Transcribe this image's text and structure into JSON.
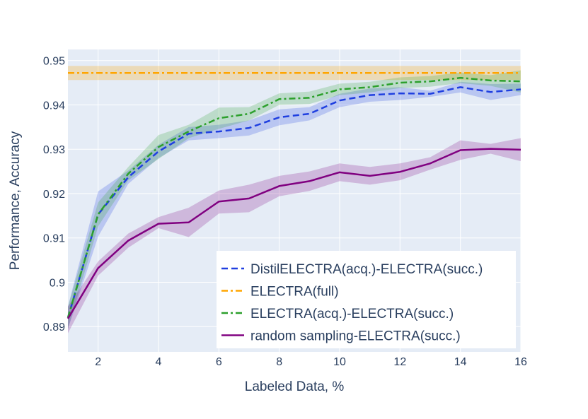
{
  "chart_data": {
    "type": "line",
    "title": "",
    "xlabel": "Labeled Data, %",
    "ylabel": "Performance, Accuracy",
    "xlim": [
      1,
      16
    ],
    "ylim": [
      0.8843,
      0.9525
    ],
    "xticks": [
      2,
      4,
      6,
      8,
      10,
      12,
      14,
      16
    ],
    "yticks": [
      0.89,
      0.9,
      0.91,
      0.92,
      0.93,
      0.94,
      0.95
    ],
    "ytick_labels": [
      "0.89",
      "0.9",
      "0.91",
      "0.92",
      "0.93",
      "0.94",
      "0.95"
    ],
    "legend_position": "bottom-right",
    "series": [
      {
        "name": "DistilELECTRA(acq.)-ELECTRA(succ.)",
        "color": "#1f3fe0",
        "dash": "dash",
        "x": [
          1,
          1.15,
          2,
          3,
          4,
          5,
          6,
          7,
          8,
          9,
          10,
          11,
          12,
          13,
          14,
          15,
          16
        ],
        "values": [
          0.892,
          0.8955,
          0.9153,
          0.9237,
          0.9295,
          0.9335,
          0.934,
          0.9348,
          0.9372,
          0.938,
          0.941,
          0.9422,
          0.9426,
          0.9425,
          0.944,
          0.9429,
          0.9435
        ],
        "upper": [
          0.8945,
          0.8985,
          0.9205,
          0.9252,
          0.931,
          0.935,
          0.9355,
          0.9365,
          0.939,
          0.9395,
          0.9425,
          0.9437,
          0.944,
          0.9432,
          0.9452,
          0.9447,
          0.9448
        ],
        "lower": [
          0.8895,
          0.8925,
          0.9103,
          0.9222,
          0.928,
          0.932,
          0.9325,
          0.9331,
          0.9354,
          0.9365,
          0.9395,
          0.9407,
          0.9411,
          0.9418,
          0.9428,
          0.9411,
          0.9422
        ]
      },
      {
        "name": "ELECTRA(full)",
        "color": "#ffa500",
        "dash": "dashdot",
        "x": [
          1,
          16
        ],
        "values": [
          0.9472,
          0.9472
        ],
        "upper": [
          0.9488,
          0.9488
        ],
        "lower": [
          0.9456,
          0.9456
        ]
      },
      {
        "name": "ELECTRA(acq.)-ELECTRA(succ.)",
        "color": "#2ca02c",
        "dash": "dashdot",
        "x": [
          1,
          1.15,
          2,
          3,
          4,
          5,
          6,
          7,
          8,
          9,
          10,
          11,
          12,
          13,
          14,
          15,
          16
        ],
        "values": [
          0.892,
          0.8955,
          0.9153,
          0.9245,
          0.9305,
          0.934,
          0.937,
          0.938,
          0.9413,
          0.9416,
          0.9435,
          0.944,
          0.945,
          0.9453,
          0.9461,
          0.9455,
          0.9453
        ],
        "upper": [
          0.8945,
          0.898,
          0.918,
          0.926,
          0.9332,
          0.9355,
          0.9394,
          0.9395,
          0.9426,
          0.943,
          0.9448,
          0.9452,
          0.9462,
          0.9465,
          0.9473,
          0.9467,
          0.9478
        ],
        "lower": [
          0.8895,
          0.893,
          0.9126,
          0.923,
          0.9278,
          0.9325,
          0.9346,
          0.9365,
          0.94,
          0.9402,
          0.9422,
          0.9428,
          0.9438,
          0.9441,
          0.9449,
          0.9443,
          0.9428
        ]
      },
      {
        "name": "random sampling-ELECTRA(succ.)",
        "color": "#800080",
        "dash": "solid",
        "x": [
          1,
          2,
          3,
          4,
          5,
          6,
          7,
          8,
          9,
          10,
          11,
          12,
          13,
          14,
          15,
          16
        ],
        "values": [
          0.8918,
          0.9032,
          0.9094,
          0.9132,
          0.9135,
          0.9182,
          0.9189,
          0.9217,
          0.9228,
          0.9248,
          0.924,
          0.9249,
          0.9268,
          0.9298,
          0.9301,
          0.9299
        ],
        "upper": [
          0.8945,
          0.9047,
          0.911,
          0.9147,
          0.9168,
          0.9207,
          0.922,
          0.924,
          0.925,
          0.9268,
          0.926,
          0.9268,
          0.9282,
          0.932,
          0.9312,
          0.9325
        ],
        "lower": [
          0.8885,
          0.9015,
          0.9078,
          0.9122,
          0.9102,
          0.9155,
          0.9158,
          0.9194,
          0.9206,
          0.9228,
          0.922,
          0.923,
          0.9254,
          0.9276,
          0.929,
          0.9273
        ]
      }
    ]
  }
}
